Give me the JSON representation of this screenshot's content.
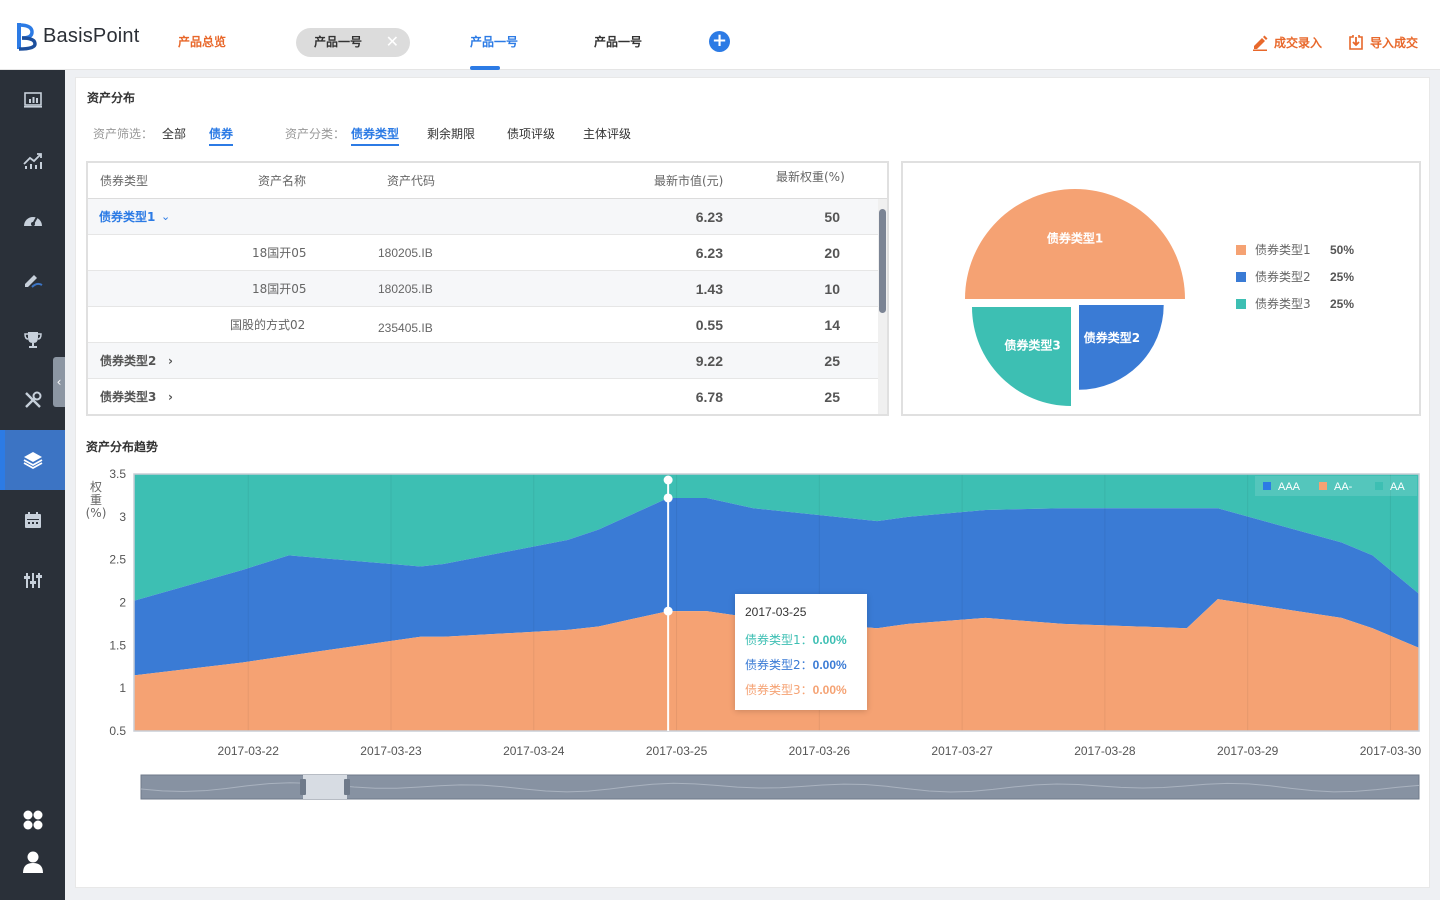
{
  "app": {
    "brand": "BasisPoint",
    "nav": {
      "overview": "产品总览",
      "tab_closable": "产品一号",
      "tab_active": "产品一号",
      "tab_third": "产品一号",
      "add": "+"
    },
    "actions": {
      "entry": "成交录入",
      "import": "导入成交"
    },
    "accent_color": "#2c7be5",
    "orange_color": "#e8682b"
  },
  "sidebar": {
    "items": [
      {
        "name": "dashboard-icon"
      },
      {
        "name": "trend-icon"
      },
      {
        "name": "gauge-icon"
      },
      {
        "name": "edit-icon"
      },
      {
        "name": "trophy-icon"
      },
      {
        "name": "tools-icon"
      },
      {
        "name": "layers-icon",
        "active": true
      },
      {
        "name": "calendar-icon"
      },
      {
        "name": "sliders-icon"
      }
    ],
    "bottom": [
      {
        "name": "apps-icon"
      },
      {
        "name": "user-icon"
      }
    ],
    "collapse": "‹"
  },
  "asset_distribution": {
    "title": "资产分布",
    "filter_label": "资产筛选：",
    "filters": [
      "全部",
      "债券"
    ],
    "selected_filter": "债券",
    "category_label": "资产分类：",
    "categories": [
      "债券类型",
      "剩余期限",
      "债项评级",
      "主体评级"
    ],
    "selected_category": "债券类型",
    "table": {
      "headers": [
        "债券类型",
        "资产名称",
        "资产代码",
        "最新市值(元)",
        "最新权重(%)"
      ],
      "rows": [
        {
          "group": "债券类型1",
          "expanded": true,
          "name": "",
          "code": "",
          "value": "6.23",
          "weight": "50"
        },
        {
          "group": "",
          "name": "18国开05",
          "code": "180205.IB",
          "value": "6.23",
          "weight": "20"
        },
        {
          "group": "",
          "name": "18国开05",
          "code": "180205.IB",
          "value": "1.43",
          "weight": "10"
        },
        {
          "group": "",
          "name": "国股的方式02",
          "code": "235405.IB",
          "value": "0.55",
          "weight": "14"
        },
        {
          "group": "债券类型2",
          "expanded": false,
          "name": "",
          "code": "",
          "value": "9.22",
          "weight": "25"
        },
        {
          "group": "债券类型3",
          "expanded": false,
          "name": "",
          "code": "",
          "value": "6.78",
          "weight": "25"
        }
      ]
    }
  },
  "chart_data": [
    {
      "type": "pie",
      "title": "",
      "slices": [
        {
          "label": "债券类型1",
          "value": 50,
          "pct": "50%",
          "color": "#f5a273"
        },
        {
          "label": "债券类型2",
          "value": 25,
          "pct": "25%",
          "color": "#3a7bd5"
        },
        {
          "label": "债券类型3",
          "value": 25,
          "pct": "25%",
          "color": "#3dbfb3"
        }
      ]
    },
    {
      "type": "area",
      "title": "资产分布趋势",
      "ylabel": "权重(%)",
      "yticks": [
        "3.5",
        "3",
        "2.5",
        "2",
        "1.5",
        "1",
        "0.5"
      ],
      "ylim": [
        0.5,
        3.5
      ],
      "x_labels": [
        "2017-03-22",
        "2017-03-23",
        "2017-03-24",
        "2017-03-25",
        "2017-03-26",
        "2017-03-27",
        "2017-03-28",
        "2017-03-29",
        "2017-03-30"
      ],
      "x": [
        0,
        0.7,
        1,
        1.85,
        2,
        2.8,
        3,
        3.45,
        3.7,
        4,
        4.8,
        5,
        5.5,
        6,
        6.8,
        7,
        7.8,
        8,
        8.3
      ],
      "series": [
        {
          "name": "AA-",
          "color": "#f5a273",
          "cumulative": [
            1.15,
            1.3,
            1.38,
            1.6,
            1.6,
            1.68,
            1.72,
            1.9,
            1.9,
            1.82,
            1.7,
            1.75,
            1.82,
            1.75,
            1.7,
            2.04,
            1.82,
            1.7,
            1.47
          ]
        },
        {
          "name": "AAA",
          "color": "#3a7bd5",
          "cumulative": [
            2.02,
            2.38,
            2.55,
            2.42,
            2.45,
            2.73,
            2.85,
            3.22,
            3.22,
            3.1,
            2.95,
            3.0,
            3.08,
            3.1,
            3.1,
            3.1,
            2.7,
            2.55,
            2.1
          ]
        },
        {
          "name": "AA",
          "color": "#3dbfb3",
          "cumulative": [
            3.5,
            3.5,
            3.5,
            3.5,
            3.5,
            3.5,
            3.5,
            3.5,
            3.5,
            3.5,
            3.5,
            3.5,
            3.5,
            3.5,
            3.5,
            3.5,
            3.5,
            3.5,
            3.5
          ]
        }
      ],
      "legend": [
        "AAA",
        "AA-",
        "AA"
      ],
      "legend_position": "top-right",
      "tooltip": {
        "date": "2017-03-25",
        "rows": [
          {
            "label": "债券类型1：",
            "value": "0.00%",
            "color": "#3dbfb3"
          },
          {
            "label": "债券类型2：",
            "value": "0.00%",
            "color": "#3a7bd5"
          },
          {
            "label": "债券类型3：",
            "value": "0.00%",
            "color": "#f5a273"
          }
        ]
      }
    }
  ]
}
